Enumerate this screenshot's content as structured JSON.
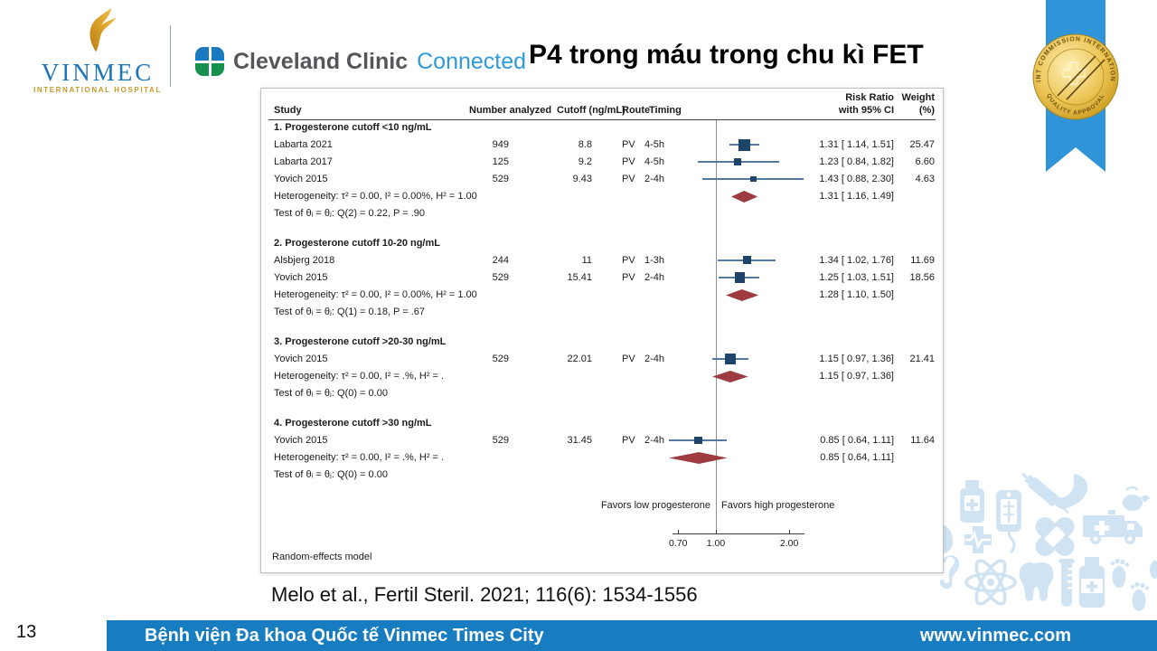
{
  "slide": {
    "page_number": "13",
    "title": "P4 trong máu trong chu kì FET",
    "citation": "Melo et al., Fertil Steril. 2021; 116(6): 1534-1556",
    "footer": {
      "hospital": "Bệnh viện Đa khoa Quốc tế Vinmec Times City",
      "website": "www.vinmec.com"
    },
    "logos": {
      "vinmec": {
        "name": "VINMEC",
        "subtitle": "INTERNATIONAL HOSPITAL"
      },
      "cleveland": {
        "name": "Cleveland Clinic",
        "suffix": "Connected"
      }
    },
    "badge": {
      "top_text": "JOINT COMMISSION INTERNATIONAL",
      "bottom_text": "QUALITY APPROVAL"
    },
    "colors": {
      "footer_bar": "#187cc1",
      "ribbon_blue": "#3094d8",
      "medal_gold": "#d9a622",
      "marker_navy": "#1e4569",
      "ci_line_blue": "#54799f",
      "diamond_red": "#9d3b41",
      "icon_light_blue": "#cfe3f3",
      "vinmec_blue": "#1b74b8",
      "vinmec_gold": "#c49a2a"
    }
  },
  "chart_data": {
    "type": "forest",
    "model_note": "Random-effects model",
    "favors_left": "Favors low progesterone",
    "favors_right": "Favors high progesterone",
    "columns": {
      "study": "Study",
      "n": "Number analyzed",
      "cutoff": "Cutoff (ng/mL)",
      "route": "Route",
      "timing": "Timing",
      "rr_line1": "Risk Ratio",
      "rr_line2": "with 95% CI",
      "weight_line1": "Weight",
      "weight_line2": "(%)"
    },
    "x_axis": {
      "scale": "log",
      "ref_line": 1.0,
      "ticks": [
        0.7,
        1.0,
        2.0
      ],
      "tick_labels": [
        "0.70",
        "1.00",
        "2.00"
      ]
    },
    "groups": [
      {
        "title": "1. Progesterone cutoff <10 ng/mL",
        "studies": [
          {
            "study": "Labarta 2021",
            "n": "949",
            "cutoff": "8.8",
            "route": "PV",
            "timing": "4-5h",
            "rr": 1.31,
            "ci_low": 1.14,
            "ci_high": 1.51,
            "rr_label": "1.31 [ 1.14,  1.51]",
            "weight": "25.47"
          },
          {
            "study": "Labarta 2017",
            "n": "125",
            "cutoff": "9.2",
            "route": "PV",
            "timing": "4-5h",
            "rr": 1.23,
            "ci_low": 0.84,
            "ci_high": 1.82,
            "rr_label": "1.23 [ 0.84,  1.82]",
            "weight": "6.60"
          },
          {
            "study": "Yovich 2015",
            "n": "529",
            "cutoff": "9.43",
            "route": "PV",
            "timing": "2-4h",
            "rr": 1.43,
            "ci_low": 0.88,
            "ci_high": 2.3,
            "rr_label": "1.43 [ 0.88,  2.30]",
            "weight": "4.63"
          }
        ],
        "heterogeneity": "Heterogeneity: τ² = 0.00, I² = 0.00%, H² = 1.00",
        "test": "Test of θᵢ = θⱼ: Q(2) = 0.22, P = .90",
        "summary": {
          "rr": 1.31,
          "ci_low": 1.16,
          "ci_high": 1.49,
          "label": "1.31 [ 1.16,  1.49]"
        }
      },
      {
        "title": "2. Progesterone cutoff 10-20 ng/mL",
        "studies": [
          {
            "study": "Alsbjerg 2018",
            "n": "244",
            "cutoff": "11",
            "route": "PV",
            "timing": "1-3h",
            "rr": 1.34,
            "ci_low": 1.02,
            "ci_high": 1.76,
            "rr_label": "1.34 [ 1.02,  1.76]",
            "weight": "11.69"
          },
          {
            "study": "Yovich 2015",
            "n": "529",
            "cutoff": "15.41",
            "route": "PV",
            "timing": "2-4h",
            "rr": 1.25,
            "ci_low": 1.03,
            "ci_high": 1.51,
            "rr_label": "1.25 [ 1.03,  1.51]",
            "weight": "18.56"
          }
        ],
        "heterogeneity": "Heterogeneity: τ² = 0.00, I² = 0.00%, H² = 1.00",
        "test": "Test of θᵢ = θⱼ: Q(1) = 0.18, P = .67",
        "summary": {
          "rr": 1.28,
          "ci_low": 1.1,
          "ci_high": 1.5,
          "label": "1.28 [ 1.10,  1.50]"
        }
      },
      {
        "title": "3. Progesterone cutoff >20-30 ng/mL",
        "studies": [
          {
            "study": "Yovich 2015",
            "n": "529",
            "cutoff": "22.01",
            "route": "PV",
            "timing": "2-4h",
            "rr": 1.15,
            "ci_low": 0.97,
            "ci_high": 1.36,
            "rr_label": "1.15 [ 0.97,  1.36]",
            "weight": "21.41"
          }
        ],
        "heterogeneity": "Heterogeneity: τ² = 0.00, I² = .%, H² = .",
        "test": "Test of θᵢ = θⱼ: Q(0) = 0.00",
        "summary": {
          "rr": 1.15,
          "ci_low": 0.97,
          "ci_high": 1.36,
          "label": "1.15 [ 0.97,  1.36]"
        }
      },
      {
        "title": "4. Progesterone cutoff >30 ng/mL",
        "studies": [
          {
            "study": "Yovich 2015",
            "n": "529",
            "cutoff": "31.45",
            "route": "PV",
            "timing": "2-4h",
            "rr": 0.85,
            "ci_low": 0.64,
            "ci_high": 1.11,
            "rr_label": "0.85 [ 0.64,  1.11]",
            "weight": "11.64"
          }
        ],
        "heterogeneity": "Heterogeneity: τ² = 0.00, I² = .%, H² = .",
        "test": "Test of θᵢ = θⱼ: Q(0) = 0.00",
        "summary": {
          "rr": 0.85,
          "ci_low": 0.64,
          "ci_high": 1.11,
          "label": "0.85 [ 0.64,  1.11]"
        }
      }
    ]
  }
}
